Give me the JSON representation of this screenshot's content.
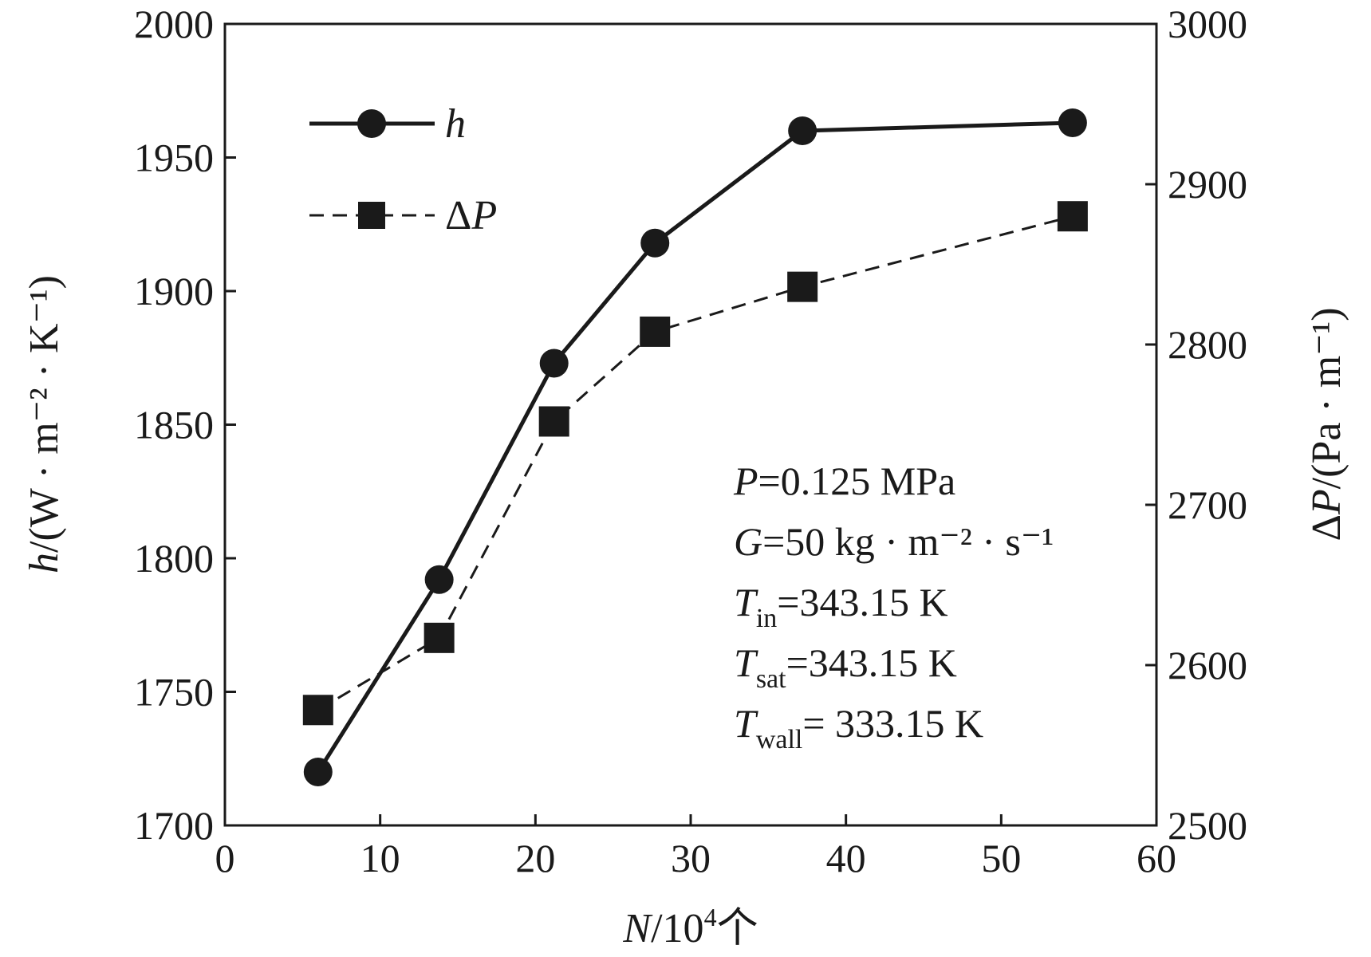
{
  "chart_data": {
    "type": "line",
    "x": [
      6.0,
      13.8,
      21.2,
      27.7,
      37.2,
      54.6
    ],
    "series": [
      {
        "name": "h",
        "axis": "left",
        "values": [
          1720,
          1792,
          1873,
          1918,
          1960,
          1963
        ],
        "style": "solid",
        "marker": "circle",
        "color": "#1a1a1a"
      },
      {
        "name": "ΔP",
        "axis": "right",
        "values": [
          2572,
          2617,
          2752,
          2808,
          2836,
          2880
        ],
        "style": "dashed",
        "marker": "square",
        "color": "#1a1a1a"
      }
    ],
    "xlabel": {
      "var": "N",
      "rest": "/10",
      "sup": "4",
      "tail": "个"
    },
    "ylabel_left": {
      "var": "h",
      "text": "/(W · m⁻² · K⁻¹)"
    },
    "ylabel_right": {
      "var": "ΔP",
      "text": "/(Pa · m⁻¹)"
    },
    "xlim": [
      0,
      60
    ],
    "ylim_left": [
      1700,
      2000
    ],
    "ylim_right": [
      2500,
      3000
    ],
    "xticks": [
      "0",
      "10",
      "20",
      "30",
      "40",
      "50",
      "60"
    ],
    "yticks_left": [
      "1700",
      "1750",
      "1800",
      "1850",
      "1900",
      "1950",
      "2000"
    ],
    "yticks_right": [
      "2500",
      "2600",
      "2700",
      "2800",
      "2900",
      "3000"
    ],
    "grid": false,
    "legend_position": "top-left",
    "annotations": [
      {
        "var": "P",
        "sub": "",
        "text": "=0.125 MPa"
      },
      {
        "var": "G",
        "sub": "",
        "text": "=50 kg · m⁻² · s⁻¹"
      },
      {
        "var": "T",
        "sub": "in",
        "text": "=343.15 K"
      },
      {
        "var": "T",
        "sub": "sat",
        "text": "=343.15 K"
      },
      {
        "var": "T",
        "sub": "wall",
        "text": "= 333.15 K"
      }
    ]
  }
}
